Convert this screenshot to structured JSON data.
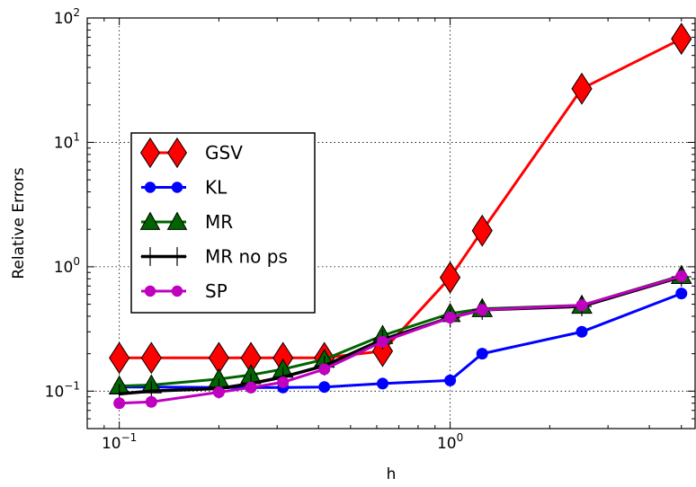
{
  "chart_data": {
    "type": "line",
    "title": "",
    "xlabel": "h",
    "ylabel": "Relative Errors",
    "xscale": "log",
    "yscale": "log",
    "xlim": [
      0.08,
      5.5
    ],
    "ylim": [
      0.05,
      100
    ],
    "grid": true,
    "legend_position": "left-center",
    "x_ticks": [
      {
        "value": 0.1,
        "base": "10",
        "exp": "−1"
      },
      {
        "value": 1,
        "base": "10",
        "exp": "0"
      }
    ],
    "y_ticks": [
      {
        "value": 0.1,
        "base": "10",
        "exp": "−1"
      },
      {
        "value": 1,
        "base": "10",
        "exp": "0"
      },
      {
        "value": 10,
        "base": "10",
        "exp": "1"
      },
      {
        "value": 100,
        "base": "10",
        "exp": "2"
      }
    ],
    "series": [
      {
        "name": "GSV",
        "color": "#ff0000",
        "marker": "diamond",
        "x": [
          0.1,
          0.125,
          0.2,
          0.25,
          0.3125,
          0.4167,
          0.625,
          1.0,
          1.25,
          2.5,
          5.0
        ],
        "y": [
          0.185,
          0.185,
          0.185,
          0.185,
          0.185,
          0.185,
          0.21,
          0.82,
          1.95,
          27,
          68
        ]
      },
      {
        "name": "KL",
        "color": "#0000ff",
        "marker": "circle",
        "x": [
          0.1,
          0.125,
          0.2,
          0.25,
          0.3125,
          0.4167,
          0.625,
          1.0,
          1.25,
          2.5,
          5.0
        ],
        "y": [
          0.108,
          0.108,
          0.107,
          0.107,
          0.107,
          0.108,
          0.115,
          0.122,
          0.2,
          0.3,
          0.61
        ]
      },
      {
        "name": "MR",
        "color": "#006400",
        "marker": "triangle",
        "x": [
          0.1,
          0.125,
          0.2,
          0.25,
          0.3125,
          0.4167,
          0.625,
          1.0,
          1.25,
          2.5,
          5.0
        ],
        "y": [
          0.11,
          0.112,
          0.125,
          0.135,
          0.15,
          0.18,
          0.28,
          0.42,
          0.46,
          0.49,
          0.85
        ]
      },
      {
        "name": "MR no ps",
        "color": "#000000",
        "marker": "plus",
        "x": [
          0.1,
          0.125,
          0.2,
          0.25,
          0.3125,
          0.4167,
          0.625,
          1.0,
          1.25,
          2.5,
          5.0
        ],
        "y": [
          0.095,
          0.1,
          0.105,
          0.115,
          0.13,
          0.16,
          0.26,
          0.39,
          0.45,
          0.48,
          0.83
        ]
      },
      {
        "name": "SP",
        "color": "#bf00bf",
        "marker": "circle",
        "x": [
          0.1,
          0.125,
          0.2,
          0.25,
          0.3125,
          0.4167,
          0.625,
          1.0,
          1.25,
          2.5,
          5.0
        ],
        "y": [
          0.08,
          0.082,
          0.098,
          0.107,
          0.118,
          0.15,
          0.25,
          0.39,
          0.45,
          0.49,
          0.84
        ]
      }
    ]
  }
}
